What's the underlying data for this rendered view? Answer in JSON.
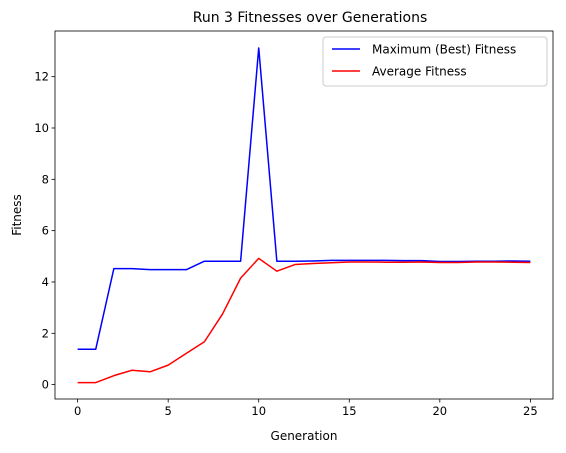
{
  "chart_data": {
    "type": "line",
    "title": "Run 3 Fitnesses over Generations",
    "xlabel": "Generation",
    "ylabel": "Fitness",
    "xlim": [
      -1.25,
      26.25
    ],
    "ylim": [
      -0.56,
      13.78
    ],
    "xticks": [
      0,
      5,
      10,
      15,
      20,
      25
    ],
    "yticks": [
      0,
      2,
      4,
      6,
      8,
      10,
      12
    ],
    "grid": false,
    "legend_position": "top-right",
    "x": [
      0,
      1,
      2,
      3,
      4,
      5,
      6,
      7,
      8,
      9,
      10,
      11,
      12,
      13,
      14,
      15,
      16,
      17,
      18,
      19,
      20,
      21,
      22,
      23,
      24,
      25
    ],
    "series": [
      {
        "name": "Maximum (Best) Fitness",
        "color": "#0000ff",
        "values": [
          1.38,
          1.38,
          4.52,
          4.52,
          4.48,
          4.48,
          4.48,
          4.81,
          4.81,
          4.81,
          13.12,
          4.81,
          4.81,
          4.82,
          4.84,
          4.84,
          4.84,
          4.84,
          4.83,
          4.83,
          4.8,
          4.8,
          4.81,
          4.81,
          4.82,
          4.81
        ]
      },
      {
        "name": "Average Fitness",
        "color": "#ff0000",
        "values": [
          0.08,
          0.08,
          0.35,
          0.56,
          0.5,
          0.76,
          1.22,
          1.67,
          2.75,
          4.15,
          4.92,
          4.42,
          4.68,
          4.72,
          4.75,
          4.78,
          4.78,
          4.77,
          4.77,
          4.78,
          4.76,
          4.76,
          4.78,
          4.78,
          4.77,
          4.76
        ]
      }
    ]
  }
}
